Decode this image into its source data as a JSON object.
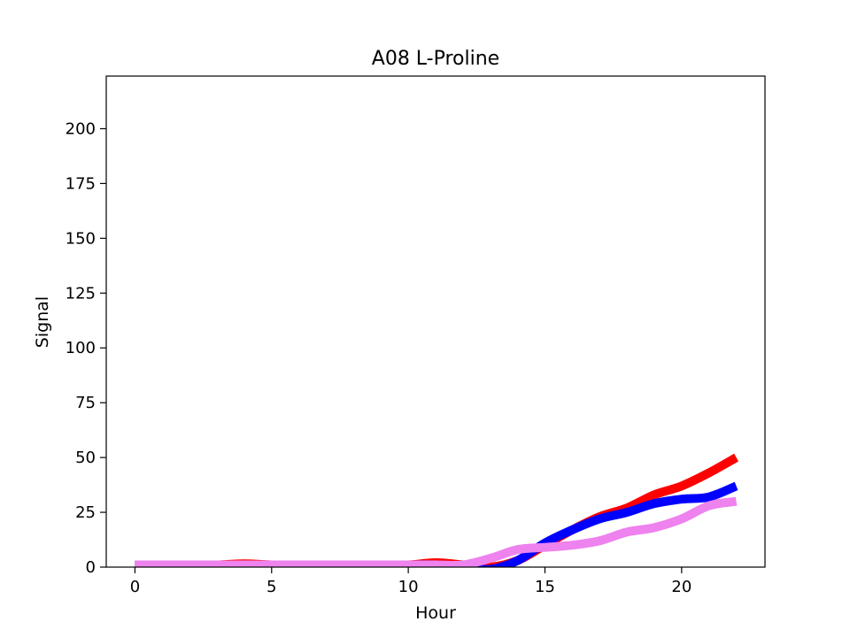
{
  "chart_data": {
    "type": "line",
    "title": "A08 L-Proline",
    "xlabel": "Hour",
    "ylabel": "Signal",
    "xlim": [
      -1.05,
      23.05
    ],
    "ylim": [
      0,
      224
    ],
    "x_ticks": [
      0,
      5,
      10,
      15,
      20
    ],
    "y_ticks": [
      0,
      25,
      50,
      75,
      100,
      125,
      150,
      175,
      200
    ],
    "grid": false,
    "legend": "none",
    "x": [
      0,
      1,
      2,
      3,
      4,
      5,
      6,
      7,
      8,
      9,
      10,
      11,
      12,
      13,
      14,
      15,
      16,
      17,
      18,
      19,
      20,
      21,
      22
    ],
    "series": [
      {
        "color": "#ff0000",
        "values": [
          1,
          1,
          1,
          1,
          1.5,
          1,
          1,
          1,
          1,
          1,
          1,
          2,
          1,
          0,
          3,
          10,
          17,
          23,
          27,
          33,
          37,
          43,
          50
        ]
      },
      {
        "color": "#0000ff",
        "values": [
          1,
          1,
          1,
          1,
          1,
          1,
          1,
          1,
          1,
          1,
          1,
          1,
          0,
          -1,
          3,
          11,
          17,
          22,
          25,
          29,
          31,
          32,
          37
        ]
      },
      {
        "color": "#ee82ee",
        "values": [
          1,
          1,
          1,
          1,
          1,
          1,
          1,
          1,
          1,
          1,
          1,
          1,
          1,
          4,
          8,
          9,
          10,
          12,
          16,
          18,
          22,
          28,
          30
        ]
      }
    ]
  }
}
